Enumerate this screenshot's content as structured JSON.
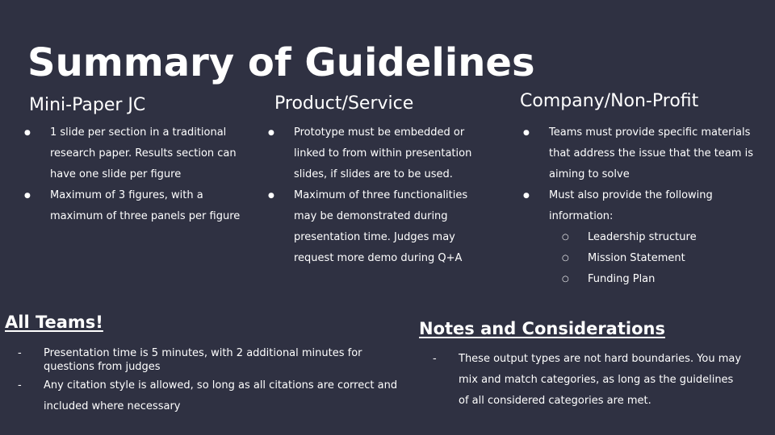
{
  "title": "Summary of Guidelines",
  "columns": [
    {
      "heading": "Mini-Paper JC",
      "bullets": [
        {
          "text": "1 slide per section in a traditional research paper. Results section can have one slide per figure"
        },
        {
          "text": "Maximum of 3 figures, with a maximum of three panels per figure"
        }
      ]
    },
    {
      "heading": "Product/Service",
      "bullets": [
        {
          "text": "Prototype must be embedded or linked to from within presentation slides, if slides are to be used."
        },
        {
          "text": "Maximum of three functionalities may be demonstrated during presentation time. Judges may request more demo during Q+A"
        }
      ]
    },
    {
      "heading": "Company/Non-Profit",
      "bullets": [
        {
          "text": "Teams must provide specific materials that address the issue that the team is aiming to solve"
        },
        {
          "text": "Must also provide the following information:"
        }
      ],
      "sub_bullets": [
        "Leadership structure",
        "Mission Statement",
        "Funding Plan"
      ]
    }
  ],
  "all_teams": {
    "heading": "All Teams!",
    "items": [
      "Presentation time is 5 minutes, with 2 additional minutes for questions from judges",
      "Any citation style is allowed, so long as all citations are correct and included where necessary"
    ]
  },
  "notes": {
    "heading": "Notes and Considerations",
    "items": [
      "These output types are not hard boundaries. You may mix and match categories, as long as the guidelines of all considered categories are met."
    ]
  }
}
